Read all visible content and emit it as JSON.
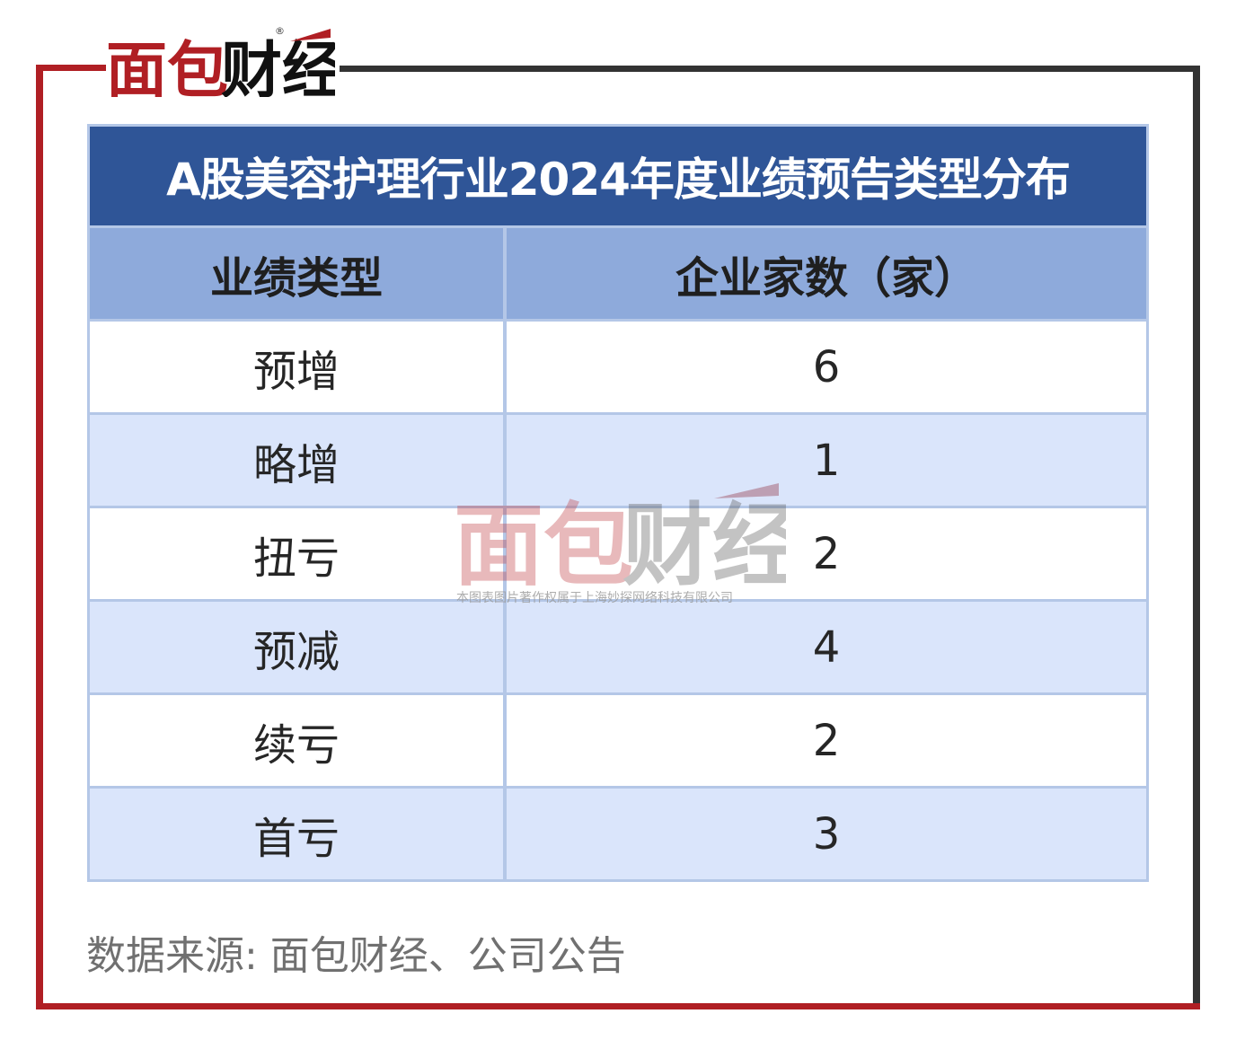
{
  "brand": {
    "logo_text": "面包财经",
    "registered": "®",
    "red": "#b01f24",
    "dark": "#333333"
  },
  "chart_data": {
    "type": "table",
    "title": "A股美容护理行业2024年度业绩预告类型分布",
    "columns": [
      "业绩类型",
      "企业家数（家）"
    ],
    "rows": [
      {
        "type": "预增",
        "count": "6"
      },
      {
        "type": "略增",
        "count": "1"
      },
      {
        "type": "扭亏",
        "count": "2"
      },
      {
        "type": "预减",
        "count": "4"
      },
      {
        "type": "续亏",
        "count": "2"
      },
      {
        "type": "首亏",
        "count": "3"
      }
    ]
  },
  "watermark": {
    "logo_text": "面包财经",
    "caption": "本图表图片著作权属于上海妙探网络科技有限公司"
  },
  "source": "数据来源: 面包财经、公司公告",
  "colors": {
    "title_bg": "#2f5597",
    "header_bg": "#8eaadb",
    "row_alt_bg": "#dae5fb",
    "border": "#b4c7e7"
  }
}
